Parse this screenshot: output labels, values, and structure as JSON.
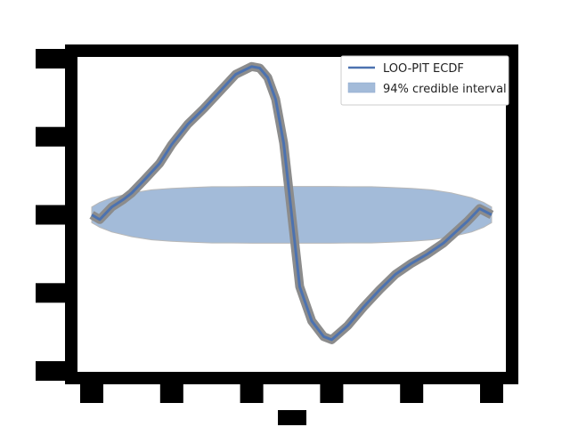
{
  "chart_data": {
    "type": "line",
    "title": "",
    "xlabel": "",
    "ylabel": "",
    "xlim": [
      0,
      1
    ],
    "ylim": [
      -0.1,
      0.1
    ],
    "grid": false,
    "legend_position": "top-right",
    "legend": [
      {
        "label": "LOO-PIT ECDF",
        "kind": "line",
        "color": "#4c72b0"
      },
      {
        "label": "94% credible interval",
        "kind": "patch",
        "color": "#a3bbd9"
      }
    ],
    "series": [
      {
        "role": "ecdf",
        "color": "#4c72b0",
        "x": [
          0.0,
          0.02,
          0.05,
          0.08,
          0.1,
          0.13,
          0.17,
          0.2,
          0.24,
          0.28,
          0.32,
          0.36,
          0.4,
          0.42,
          0.44,
          0.46,
          0.48,
          0.5,
          0.52,
          0.55,
          0.58,
          0.6,
          0.64,
          0.68,
          0.72,
          0.76,
          0.8,
          0.84,
          0.88,
          0.91,
          0.94,
          0.97,
          1.0
        ],
        "y": [
          0.0,
          -0.003,
          0.005,
          0.01,
          0.014,
          0.022,
          0.033,
          0.045,
          0.058,
          0.068,
          0.079,
          0.09,
          0.095,
          0.094,
          0.088,
          0.074,
          0.046,
          0.0,
          -0.046,
          -0.068,
          -0.078,
          -0.08,
          -0.071,
          -0.059,
          -0.048,
          -0.038,
          -0.031,
          -0.025,
          -0.018,
          -0.011,
          -0.004,
          0.004,
          0.0
        ]
      }
    ],
    "band": {
      "label": "94% credible interval",
      "color": "#a3bbd9",
      "x": [
        0.0,
        0.02,
        0.05,
        0.1,
        0.15,
        0.2,
        0.25,
        0.3,
        0.35,
        0.4,
        0.45,
        0.5,
        0.55,
        0.6,
        0.65,
        0.7,
        0.75,
        0.8,
        0.85,
        0.9,
        0.95,
        0.98,
        1.0
      ],
      "upper": [
        0.005,
        0.008,
        0.011,
        0.014,
        0.016,
        0.017,
        0.0175,
        0.018,
        0.018,
        0.0182,
        0.0182,
        0.0182,
        0.0182,
        0.0182,
        0.018,
        0.018,
        0.0175,
        0.017,
        0.016,
        0.014,
        0.011,
        0.008,
        0.005
      ],
      "lower": [
        -0.005,
        -0.008,
        -0.011,
        -0.014,
        -0.016,
        -0.017,
        -0.0175,
        -0.018,
        -0.018,
        -0.0182,
        -0.0182,
        -0.0182,
        -0.0182,
        -0.0182,
        -0.018,
        -0.018,
        -0.0175,
        -0.017,
        -0.016,
        -0.014,
        -0.011,
        -0.008,
        -0.005
      ]
    }
  }
}
